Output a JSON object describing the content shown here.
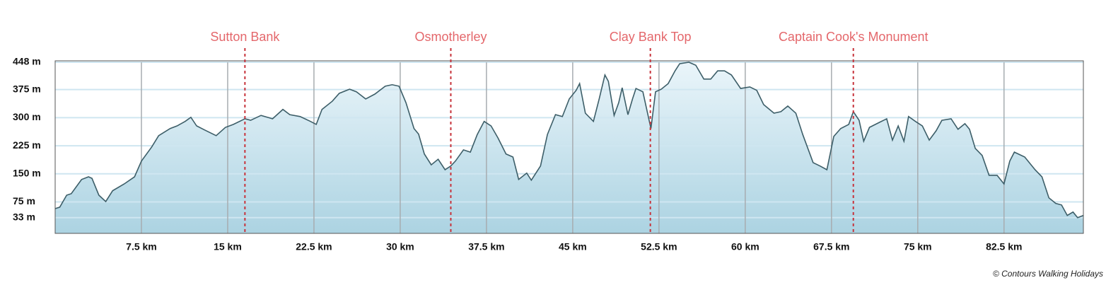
{
  "chart_data": {
    "type": "area",
    "x": [
      0.0,
      0.4,
      1.0,
      1.4,
      2.3,
      2.9,
      3.2,
      3.8,
      4.4,
      5.0,
      6.0,
      6.9,
      7.5,
      8.4,
      9.0,
      10.0,
      10.6,
      11.3,
      11.8,
      12.3,
      13.0,
      14.0,
      14.8,
      15.5,
      16.5,
      17.0,
      17.9,
      18.9,
      19.8,
      20.4,
      21.3,
      22.2,
      22.7,
      23.2,
      24.1,
      24.7,
      25.6,
      26.2,
      27.0,
      27.8,
      28.7,
      29.3,
      29.9,
      30.5,
      31.2,
      31.6,
      32.1,
      32.7,
      33.3,
      33.9,
      34.4,
      34.8,
      35.5,
      36.1,
      36.7,
      37.3,
      37.9,
      38.5,
      39.2,
      39.8,
      40.3,
      41.0,
      41.4,
      42.2,
      42.8,
      43.5,
      44.1,
      44.7,
      45.3,
      45.6,
      46.1,
      46.8,
      47.3,
      47.8,
      48.1,
      48.6,
      49.0,
      49.3,
      49.8,
      50.2,
      50.5,
      51.1,
      51.8,
      52.2,
      52.7,
      53.3,
      53.9,
      54.3,
      55.1,
      55.7,
      56.4,
      57.0,
      57.6,
      58.2,
      58.8,
      59.6,
      60.4,
      61.0,
      61.6,
      62.5,
      63.1,
      63.7,
      64.4,
      65.0,
      65.9,
      66.5,
      67.1,
      67.7,
      68.3,
      69.0,
      69.4,
      69.9,
      70.3,
      70.8,
      71.7,
      72.3,
      72.8,
      73.3,
      73.8,
      74.2,
      74.8,
      75.4,
      76.0,
      76.6,
      77.1,
      77.9,
      78.5,
      79.1,
      79.5,
      80.0,
      80.6,
      81.2,
      81.9,
      82.5,
      83.0,
      83.4,
      84.3,
      85.2,
      85.8,
      86.4,
      87.0,
      87.5,
      88.0,
      88.5,
      88.9,
      89.4
    ],
    "y": [
      57,
      61,
      93,
      97,
      135,
      142,
      138,
      93,
      76,
      105,
      123,
      142,
      184,
      222,
      252,
      271,
      278,
      290,
      301,
      278,
      267,
      252,
      274,
      282,
      297,
      293,
      306,
      297,
      322,
      308,
      303,
      290,
      282,
      322,
      344,
      365,
      376,
      369,
      350,
      363,
      384,
      388,
      384,
      340,
      271,
      256,
      203,
      174,
      189,
      161,
      171,
      184,
      214,
      208,
      255,
      290,
      278,
      246,
      203,
      195,
      135,
      152,
      133,
      171,
      255,
      308,
      303,
      350,
      373,
      391,
      312,
      290,
      350,
      414,
      397,
      306,
      340,
      380,
      308,
      350,
      378,
      369,
      271,
      369,
      376,
      391,
      425,
      444,
      448,
      440,
      403,
      403,
      425,
      425,
      414,
      378,
      382,
      373,
      335,
      312,
      316,
      331,
      312,
      255,
      180,
      171,
      161,
      250,
      271,
      282,
      316,
      293,
      237,
      274,
      288,
      297,
      240,
      278,
      237,
      303,
      290,
      278,
      240,
      265,
      293,
      297,
      269,
      284,
      269,
      218,
      199,
      146,
      146,
      123,
      184,
      208,
      195,
      161,
      142,
      86,
      71,
      67,
      39,
      48,
      33,
      39
    ],
    "color": "#3d5e68",
    "xlim": [
      0,
      89.4
    ],
    "ylim": [
      -9,
      448
    ],
    "xticks": [
      {
        "value": 7.5,
        "label": "7.5 km"
      },
      {
        "value": 15,
        "label": "15 km"
      },
      {
        "value": 22.5,
        "label": "22.5 km"
      },
      {
        "value": 30,
        "label": "30 km"
      },
      {
        "value": 37.5,
        "label": "37.5 km"
      },
      {
        "value": 45,
        "label": "45 km"
      },
      {
        "value": 52.5,
        "label": "52.5 km"
      },
      {
        "value": 60,
        "label": "60 km"
      },
      {
        "value": 67.5,
        "label": "67.5 km"
      },
      {
        "value": 75,
        "label": "75 km"
      },
      {
        "value": 82.5,
        "label": "82.5 km"
      }
    ],
    "yticks": [
      {
        "value": 448,
        "label": "448 m"
      },
      {
        "value": 375,
        "label": "375 m"
      },
      {
        "value": 300,
        "label": "300 m"
      },
      {
        "value": 225,
        "label": "225 m"
      },
      {
        "value": 150,
        "label": "150 m"
      },
      {
        "value": 75,
        "label": "75 m"
      },
      {
        "value": 33,
        "label": "33 m"
      }
    ],
    "grid": true,
    "annotations": [
      {
        "label": "Sutton Bank",
        "x": 16.5
      },
      {
        "label": "Osmotherley",
        "x": 34.4
      },
      {
        "label": "Clay Bank Top",
        "x": 51.75
      },
      {
        "label": "Captain Cook's Monument",
        "x": 69.4
      }
    ],
    "credit": "© Contours Walking Holidays"
  }
}
